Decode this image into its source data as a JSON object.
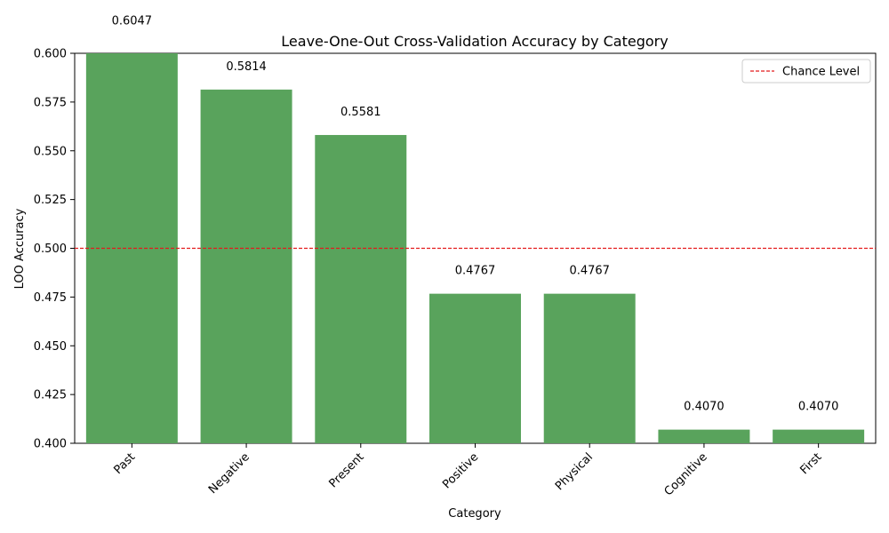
{
  "chart_data": {
    "type": "bar",
    "title": "Leave-One-Out Cross-Validation Accuracy by Category",
    "xlabel": "Category",
    "ylabel": "LOO Accuracy",
    "categories": [
      "Past",
      "Negative",
      "Present",
      "Positive",
      "Physical",
      "Cognitive",
      "First"
    ],
    "values": [
      0.6047,
      0.5814,
      0.5581,
      0.4767,
      0.4767,
      0.407,
      0.407
    ],
    "value_labels": [
      "0.6047",
      "0.5814",
      "0.5581",
      "0.4767",
      "0.4767",
      "0.4070",
      "0.4070"
    ],
    "ylim": [
      0.4,
      0.6
    ],
    "yticks": [
      "0.400",
      "0.425",
      "0.450",
      "0.475",
      "0.500",
      "0.525",
      "0.550",
      "0.575",
      "0.600"
    ],
    "bar_color": "#59a35c",
    "reference_line": {
      "value": 0.5,
      "label": "Chance Level",
      "color": "#e31a1c",
      "style": "dashed"
    },
    "legend_position": "top-right",
    "grid": false
  }
}
